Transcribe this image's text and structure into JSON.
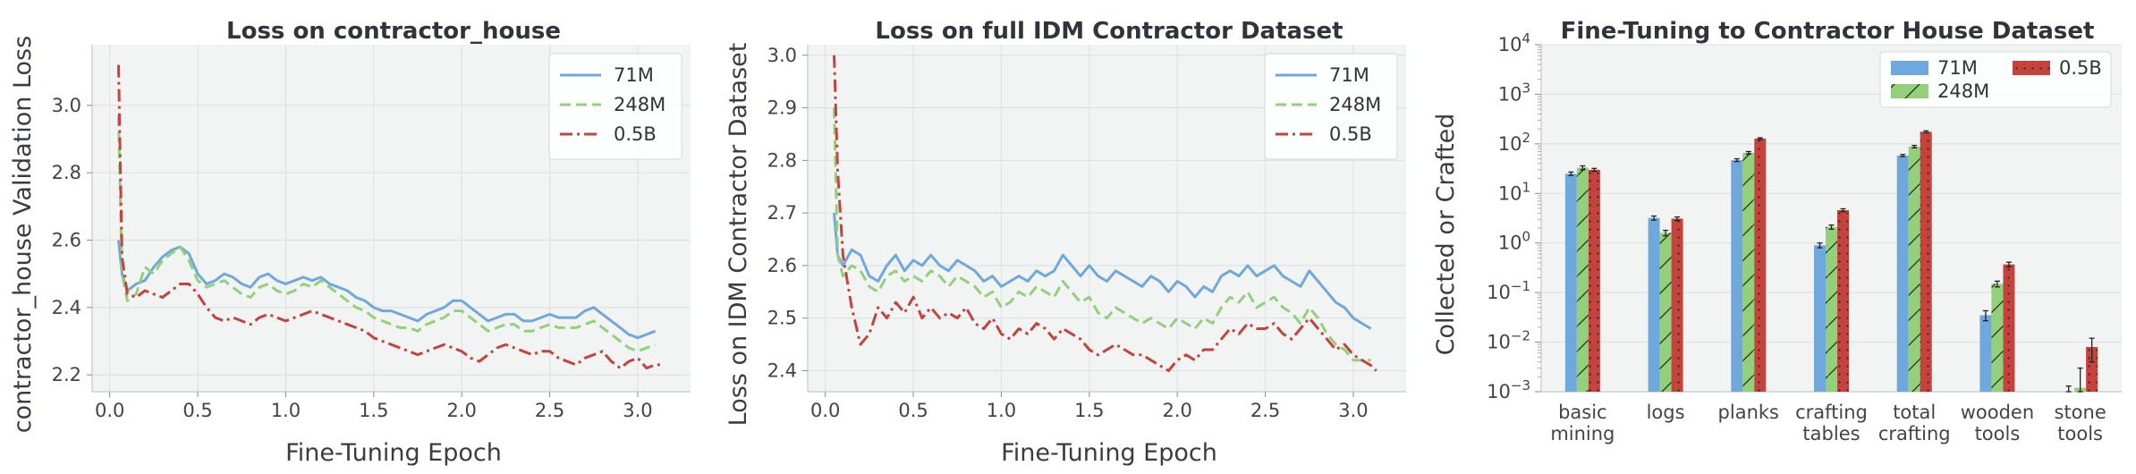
{
  "chart_data": [
    {
      "type": "line",
      "title": "Loss on contractor_house",
      "xlabel": "Fine-Tuning Epoch",
      "ylabel": "contractor_house Validation Loss",
      "xlim": [
        -0.1,
        3.3
      ],
      "ylim": [
        2.15,
        3.18
      ],
      "xticks": [
        0.0,
        0.5,
        1.0,
        1.5,
        2.0,
        2.5,
        3.0
      ],
      "xtick_labels": [
        "0.0",
        "0.5",
        "1.0",
        "1.5",
        "2.0",
        "2.5",
        "3.0"
      ],
      "yticks": [
        2.2,
        2.4,
        2.6,
        2.8,
        3.0
      ],
      "ytick_labels": [
        "2.2",
        "2.4",
        "2.6",
        "2.8",
        "3.0"
      ],
      "grid": true,
      "legend": "top-right",
      "series": [
        {
          "name": "71M",
          "color": "#6fa8dc",
          "dash": "solid",
          "x": [
            0.05,
            0.07,
            0.1,
            0.15,
            0.2,
            0.25,
            0.3,
            0.35,
            0.4,
            0.45,
            0.5,
            0.55,
            0.6,
            0.65,
            0.7,
            0.75,
            0.8,
            0.85,
            0.9,
            0.95,
            1.0,
            1.05,
            1.1,
            1.15,
            1.2,
            1.25,
            1.3,
            1.35,
            1.4,
            1.45,
            1.5,
            1.55,
            1.6,
            1.65,
            1.7,
            1.75,
            1.8,
            1.85,
            1.9,
            1.95,
            2.0,
            2.05,
            2.1,
            2.15,
            2.2,
            2.25,
            2.3,
            2.35,
            2.4,
            2.45,
            2.5,
            2.55,
            2.6,
            2.65,
            2.7,
            2.75,
            2.8,
            2.85,
            2.9,
            2.95,
            3.0,
            3.05,
            3.1
          ],
          "y": [
            2.6,
            2.5,
            2.45,
            2.47,
            2.48,
            2.52,
            2.55,
            2.57,
            2.58,
            2.56,
            2.5,
            2.47,
            2.48,
            2.5,
            2.49,
            2.47,
            2.46,
            2.49,
            2.5,
            2.48,
            2.47,
            2.48,
            2.49,
            2.48,
            2.49,
            2.47,
            2.46,
            2.45,
            2.43,
            2.42,
            2.4,
            2.39,
            2.39,
            2.38,
            2.37,
            2.36,
            2.38,
            2.39,
            2.4,
            2.42,
            2.42,
            2.4,
            2.38,
            2.36,
            2.37,
            2.38,
            2.38,
            2.36,
            2.36,
            2.37,
            2.38,
            2.37,
            2.37,
            2.37,
            2.39,
            2.4,
            2.38,
            2.36,
            2.34,
            2.32,
            2.31,
            2.32,
            2.33
          ]
        },
        {
          "name": "248M",
          "color": "#93d07a",
          "dash": "dashed",
          "x": [
            0.05,
            0.07,
            0.1,
            0.15,
            0.2,
            0.25,
            0.3,
            0.35,
            0.4,
            0.45,
            0.5,
            0.55,
            0.6,
            0.65,
            0.7,
            0.75,
            0.8,
            0.85,
            0.9,
            0.95,
            1.0,
            1.05,
            1.1,
            1.15,
            1.2,
            1.25,
            1.3,
            1.35,
            1.4,
            1.45,
            1.5,
            1.55,
            1.6,
            1.65,
            1.7,
            1.75,
            1.8,
            1.85,
            1.9,
            1.95,
            2.0,
            2.05,
            2.1,
            2.15,
            2.2,
            2.25,
            2.3,
            2.35,
            2.4,
            2.45,
            2.5,
            2.55,
            2.6,
            2.65,
            2.7,
            2.75,
            2.8,
            2.85,
            2.9,
            2.95,
            3.0,
            3.05,
            3.1
          ],
          "y": [
            2.97,
            2.5,
            2.42,
            2.44,
            2.52,
            2.5,
            2.54,
            2.56,
            2.58,
            2.54,
            2.48,
            2.46,
            2.47,
            2.48,
            2.46,
            2.44,
            2.43,
            2.46,
            2.47,
            2.45,
            2.44,
            2.45,
            2.47,
            2.46,
            2.48,
            2.46,
            2.44,
            2.42,
            2.4,
            2.39,
            2.37,
            2.36,
            2.35,
            2.34,
            2.34,
            2.33,
            2.35,
            2.36,
            2.37,
            2.39,
            2.39,
            2.37,
            2.35,
            2.33,
            2.34,
            2.35,
            2.35,
            2.33,
            2.33,
            2.34,
            2.35,
            2.34,
            2.34,
            2.34,
            2.35,
            2.36,
            2.34,
            2.32,
            2.3,
            2.28,
            2.27,
            2.28,
            2.29
          ]
        },
        {
          "name": "0.5B",
          "color": "#c6423c",
          "dash": "dashdot",
          "x": [
            0.05,
            0.07,
            0.1,
            0.15,
            0.2,
            0.25,
            0.3,
            0.35,
            0.4,
            0.45,
            0.5,
            0.55,
            0.6,
            0.65,
            0.7,
            0.75,
            0.8,
            0.85,
            0.9,
            0.95,
            1.0,
            1.05,
            1.1,
            1.15,
            1.2,
            1.25,
            1.3,
            1.35,
            1.4,
            1.45,
            1.5,
            1.55,
            1.6,
            1.65,
            1.7,
            1.75,
            1.8,
            1.85,
            1.9,
            1.95,
            2.0,
            2.05,
            2.1,
            2.15,
            2.2,
            2.25,
            2.3,
            2.35,
            2.4,
            2.45,
            2.5,
            2.55,
            2.6,
            2.65,
            2.7,
            2.75,
            2.8,
            2.85,
            2.9,
            2.95,
            3.0,
            3.05,
            3.1,
            3.15
          ],
          "y": [
            3.12,
            2.55,
            2.44,
            2.43,
            2.45,
            2.44,
            2.43,
            2.45,
            2.47,
            2.47,
            2.44,
            2.4,
            2.37,
            2.36,
            2.37,
            2.36,
            2.35,
            2.37,
            2.38,
            2.37,
            2.36,
            2.37,
            2.38,
            2.39,
            2.38,
            2.37,
            2.36,
            2.35,
            2.34,
            2.33,
            2.31,
            2.3,
            2.29,
            2.28,
            2.27,
            2.26,
            2.27,
            2.28,
            2.29,
            2.28,
            2.27,
            2.25,
            2.24,
            2.26,
            2.28,
            2.29,
            2.28,
            2.27,
            2.26,
            2.27,
            2.27,
            2.25,
            2.24,
            2.23,
            2.25,
            2.26,
            2.27,
            2.24,
            2.22,
            2.24,
            2.25,
            2.22,
            2.23,
            2.23
          ]
        }
      ]
    },
    {
      "type": "line",
      "title": "Loss on full IDM Contractor Dataset",
      "xlabel": "Fine-Tuning Epoch",
      "ylabel": "Loss on IDM Contractor Dataset",
      "xlim": [
        -0.1,
        3.3
      ],
      "ylim": [
        2.36,
        3.02
      ],
      "xticks": [
        0.0,
        0.5,
        1.0,
        1.5,
        2.0,
        2.5,
        3.0
      ],
      "xtick_labels": [
        "0.0",
        "0.5",
        "1.0",
        "1.5",
        "2.0",
        "2.5",
        "3.0"
      ],
      "yticks": [
        2.4,
        2.5,
        2.6,
        2.7,
        2.8,
        2.9,
        3.0
      ],
      "ytick_labels": [
        "2.4",
        "2.5",
        "2.6",
        "2.7",
        "2.8",
        "2.9",
        "3.0"
      ],
      "grid": true,
      "legend": "top-right",
      "series": [
        {
          "name": "71M",
          "color": "#6fa8dc",
          "dash": "solid",
          "x": [
            0.05,
            0.07,
            0.1,
            0.15,
            0.2,
            0.25,
            0.3,
            0.35,
            0.4,
            0.45,
            0.5,
            0.55,
            0.6,
            0.65,
            0.7,
            0.75,
            0.8,
            0.85,
            0.9,
            0.95,
            1.0,
            1.05,
            1.1,
            1.15,
            1.2,
            1.25,
            1.3,
            1.35,
            1.4,
            1.45,
            1.5,
            1.55,
            1.6,
            1.65,
            1.7,
            1.75,
            1.8,
            1.85,
            1.9,
            1.95,
            2.0,
            2.05,
            2.1,
            2.15,
            2.2,
            2.25,
            2.3,
            2.35,
            2.4,
            2.45,
            2.5,
            2.55,
            2.6,
            2.65,
            2.7,
            2.75,
            2.8,
            2.85,
            2.9,
            2.95,
            3.0,
            3.05,
            3.1
          ],
          "y": [
            2.7,
            2.62,
            2.6,
            2.63,
            2.62,
            2.58,
            2.57,
            2.6,
            2.62,
            2.59,
            2.61,
            2.6,
            2.62,
            2.6,
            2.59,
            2.61,
            2.6,
            2.59,
            2.57,
            2.58,
            2.56,
            2.57,
            2.58,
            2.57,
            2.59,
            2.58,
            2.59,
            2.62,
            2.6,
            2.58,
            2.6,
            2.58,
            2.57,
            2.59,
            2.58,
            2.57,
            2.56,
            2.58,
            2.57,
            2.55,
            2.57,
            2.56,
            2.54,
            2.56,
            2.55,
            2.58,
            2.59,
            2.58,
            2.6,
            2.58,
            2.59,
            2.6,
            2.58,
            2.57,
            2.56,
            2.59,
            2.57,
            2.55,
            2.53,
            2.52,
            2.5,
            2.49,
            2.48
          ]
        },
        {
          "name": "248M",
          "color": "#93d07a",
          "dash": "dashed",
          "x": [
            0.05,
            0.07,
            0.1,
            0.15,
            0.2,
            0.25,
            0.3,
            0.35,
            0.4,
            0.45,
            0.5,
            0.55,
            0.6,
            0.65,
            0.7,
            0.75,
            0.8,
            0.85,
            0.9,
            0.95,
            1.0,
            1.05,
            1.1,
            1.15,
            1.2,
            1.25,
            1.3,
            1.35,
            1.4,
            1.45,
            1.5,
            1.55,
            1.6,
            1.65,
            1.7,
            1.75,
            1.8,
            1.85,
            1.9,
            1.95,
            2.0,
            2.05,
            2.1,
            2.15,
            2.2,
            2.25,
            2.3,
            2.35,
            2.4,
            2.45,
            2.5,
            2.55,
            2.6,
            2.65,
            2.7,
            2.75,
            2.8,
            2.85,
            2.9,
            2.95,
            3.0,
            3.05,
            3.1
          ],
          "y": [
            2.9,
            2.62,
            2.58,
            2.6,
            2.59,
            2.56,
            2.55,
            2.58,
            2.59,
            2.57,
            2.58,
            2.57,
            2.59,
            2.58,
            2.56,
            2.58,
            2.57,
            2.56,
            2.54,
            2.55,
            2.52,
            2.53,
            2.55,
            2.54,
            2.56,
            2.55,
            2.54,
            2.57,
            2.55,
            2.53,
            2.54,
            2.51,
            2.5,
            2.52,
            2.51,
            2.5,
            2.49,
            2.5,
            2.49,
            2.48,
            2.5,
            2.49,
            2.48,
            2.5,
            2.49,
            2.52,
            2.54,
            2.53,
            2.55,
            2.52,
            2.53,
            2.54,
            2.52,
            2.51,
            2.49,
            2.52,
            2.5,
            2.47,
            2.45,
            2.44,
            2.42,
            2.42,
            2.42
          ]
        },
        {
          "name": "0.5B",
          "color": "#c6423c",
          "dash": "dashdot",
          "x": [
            0.05,
            0.07,
            0.1,
            0.15,
            0.2,
            0.25,
            0.3,
            0.35,
            0.4,
            0.45,
            0.5,
            0.55,
            0.6,
            0.65,
            0.7,
            0.75,
            0.8,
            0.85,
            0.9,
            0.95,
            1.0,
            1.05,
            1.1,
            1.15,
            1.2,
            1.25,
            1.3,
            1.35,
            1.4,
            1.45,
            1.5,
            1.55,
            1.6,
            1.65,
            1.7,
            1.75,
            1.8,
            1.85,
            1.9,
            1.95,
            2.0,
            2.05,
            2.1,
            2.15,
            2.2,
            2.25,
            2.3,
            2.35,
            2.4,
            2.45,
            2.5,
            2.55,
            2.6,
            2.65,
            2.7,
            2.75,
            2.8,
            2.85,
            2.9,
            2.95,
            3.0,
            3.05,
            3.1,
            3.13
          ],
          "y": [
            3.0,
            2.78,
            2.62,
            2.52,
            2.45,
            2.47,
            2.52,
            2.5,
            2.53,
            2.51,
            2.54,
            2.5,
            2.52,
            2.5,
            2.51,
            2.5,
            2.52,
            2.49,
            2.48,
            2.5,
            2.47,
            2.46,
            2.48,
            2.47,
            2.49,
            2.48,
            2.46,
            2.48,
            2.47,
            2.46,
            2.44,
            2.43,
            2.44,
            2.45,
            2.44,
            2.43,
            2.43,
            2.42,
            2.41,
            2.4,
            2.42,
            2.43,
            2.42,
            2.44,
            2.44,
            2.46,
            2.48,
            2.47,
            2.49,
            2.48,
            2.48,
            2.49,
            2.47,
            2.46,
            2.48,
            2.5,
            2.48,
            2.46,
            2.44,
            2.45,
            2.43,
            2.42,
            2.41,
            2.4
          ]
        }
      ]
    },
    {
      "type": "bar",
      "title": "Fine-Tuning to Contractor House Dataset",
      "xlabel": "",
      "ylabel": "Collected or Crafted",
      "yscale": "log",
      "ylim": [
        0.001,
        10000
      ],
      "ytick_exponents": [
        -3,
        -2,
        -1,
        0,
        1,
        2,
        3,
        4
      ],
      "grid": true,
      "legend": "top-right",
      "categories": [
        [
          "basic",
          "mining"
        ],
        [
          "logs"
        ],
        [
          "planks"
        ],
        [
          "crafting",
          "tables"
        ],
        [
          "total",
          "crafting"
        ],
        [
          "wooden",
          "tools"
        ],
        [
          "stone",
          "tools"
        ]
      ],
      "series": [
        {
          "name": "71M",
          "color": "#6fa8dc",
          "hatch": "none",
          "values": [
            25,
            3.2,
            47,
            0.9,
            58,
            0.035,
            0.001
          ],
          "errors": [
            2,
            0.3,
            3,
            0.1,
            3,
            0.008,
            0.0003
          ]
        },
        {
          "name": "248M",
          "color": "#93d07a",
          "hatch": "diagonal",
          "values": [
            33,
            1.6,
            66,
            2.1,
            88,
            0.15,
            0.0012
          ],
          "errors": [
            3,
            0.2,
            4,
            0.2,
            5,
            0.02,
            0.0018
          ]
        },
        {
          "name": "0.5B",
          "color": "#c6423c",
          "hatch": "dots",
          "values": [
            30,
            3.1,
            128,
            4.6,
            175,
            0.37,
            0.008
          ],
          "errors": [
            2,
            0.25,
            5,
            0.3,
            8,
            0.04,
            0.004
          ]
        }
      ]
    }
  ]
}
